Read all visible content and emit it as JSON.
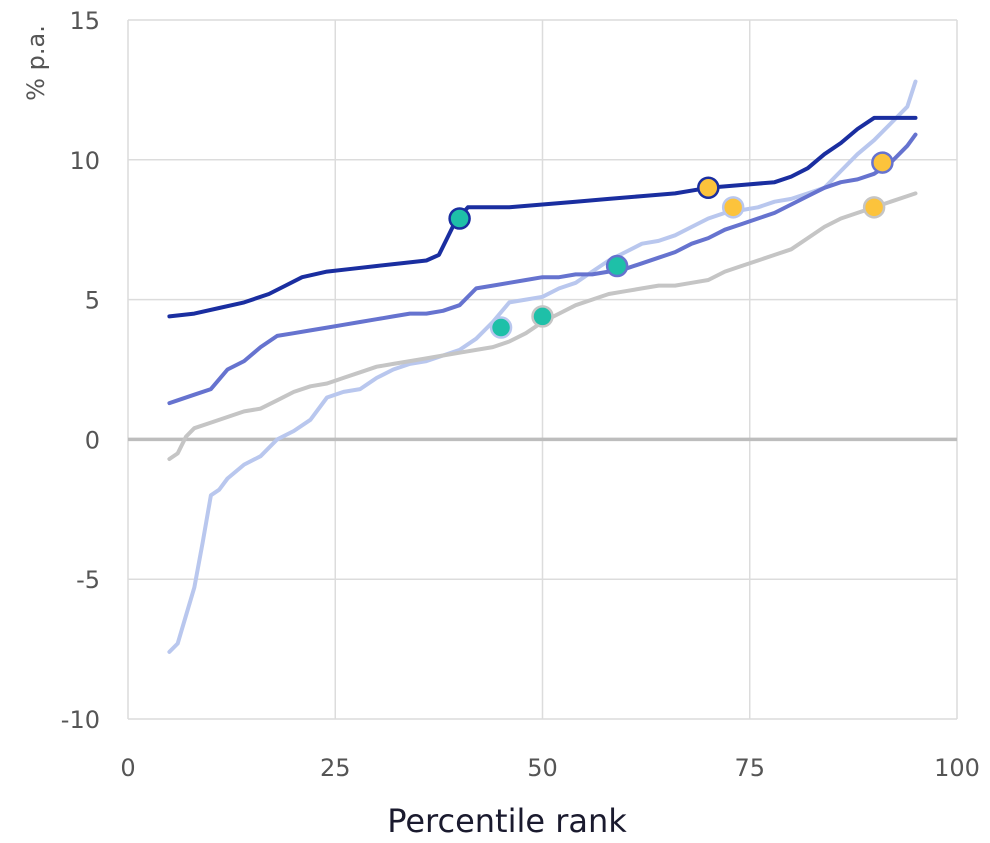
{
  "chart_data": {
    "type": "line",
    "title": "",
    "xlabel": "Percentile rank",
    "ylabel": "% p.a.",
    "xlim": [
      0,
      100
    ],
    "ylim": [
      -10,
      15
    ],
    "x_ticks": [
      0,
      25,
      50,
      75,
      100
    ],
    "y_ticks": [
      -10,
      -5,
      0,
      5,
      10,
      15
    ],
    "grid": true,
    "legend": "none",
    "zero_line_color": "#bdbdbd",
    "series": [
      {
        "color": "#b9c7ee",
        "x": [
          5,
          6,
          7,
          8,
          9,
          10,
          11,
          12,
          14,
          16,
          18,
          20,
          22,
          24,
          26,
          28,
          30,
          32,
          34,
          36,
          38,
          40,
          42,
          44,
          46,
          48,
          50,
          52,
          54,
          56,
          58,
          60,
          62,
          64,
          66,
          68,
          70,
          72,
          74,
          76,
          78,
          80,
          82,
          84,
          86,
          88,
          90,
          92,
          94,
          95
        ],
        "y": [
          -7.6,
          -7.3,
          -6.3,
          -5.3,
          -3.7,
          -2.0,
          -1.8,
          -1.4,
          -0.9,
          -0.6,
          0.0,
          0.3,
          0.7,
          1.5,
          1.7,
          1.8,
          2.2,
          2.5,
          2.7,
          2.8,
          3.0,
          3.2,
          3.6,
          4.2,
          4.9,
          5.0,
          5.1,
          5.4,
          5.6,
          6.0,
          6.4,
          6.7,
          7.0,
          7.1,
          7.3,
          7.6,
          7.9,
          8.1,
          8.2,
          8.3,
          8.5,
          8.6,
          8.8,
          9.0,
          9.6,
          10.2,
          10.7,
          11.3,
          11.9,
          12.8
        ]
      },
      {
        "color": "#c5c5c5",
        "x": [
          5,
          6,
          7,
          8,
          10,
          12,
          14,
          16,
          18,
          20,
          22,
          24,
          26,
          28,
          30,
          32,
          34,
          36,
          38,
          40,
          42,
          44,
          46,
          48,
          50,
          52,
          54,
          56,
          58,
          60,
          62,
          64,
          66,
          68,
          70,
          72,
          74,
          76,
          78,
          80,
          82,
          84,
          86,
          88,
          90,
          92,
          94,
          95
        ],
        "y": [
          -0.7,
          -0.5,
          0.1,
          0.4,
          0.6,
          0.8,
          1.0,
          1.1,
          1.4,
          1.7,
          1.9,
          2.0,
          2.2,
          2.4,
          2.6,
          2.7,
          2.8,
          2.9,
          3.0,
          3.1,
          3.2,
          3.3,
          3.5,
          3.8,
          4.2,
          4.5,
          4.8,
          5.0,
          5.2,
          5.3,
          5.4,
          5.5,
          5.5,
          5.6,
          5.7,
          6.0,
          6.2,
          6.4,
          6.6,
          6.8,
          7.2,
          7.6,
          7.9,
          8.1,
          8.3,
          8.5,
          8.7,
          8.8
        ]
      },
      {
        "color": "#6673cf",
        "x": [
          5,
          6,
          8,
          10,
          12,
          14,
          16,
          18,
          20,
          22,
          24,
          26,
          28,
          30,
          32,
          34,
          36,
          38,
          40,
          42,
          44,
          46,
          48,
          50,
          52,
          54,
          56,
          58,
          60,
          62,
          64,
          66,
          68,
          70,
          72,
          74,
          76,
          78,
          80,
          82,
          84,
          86,
          88,
          90,
          92,
          94,
          95
        ],
        "y": [
          1.3,
          1.4,
          1.6,
          1.8,
          2.5,
          2.8,
          3.3,
          3.7,
          3.8,
          3.9,
          4.0,
          4.1,
          4.2,
          4.3,
          4.4,
          4.5,
          4.5,
          4.6,
          4.8,
          5.4,
          5.5,
          5.6,
          5.7,
          5.8,
          5.8,
          5.9,
          5.9,
          6.0,
          6.1,
          6.3,
          6.5,
          6.7,
          7.0,
          7.2,
          7.5,
          7.7,
          7.9,
          8.1,
          8.4,
          8.7,
          9.0,
          9.2,
          9.3,
          9.5,
          9.9,
          10.5,
          10.9
        ]
      },
      {
        "color": "#1a2ea0",
        "x": [
          5,
          8,
          11,
          14,
          17,
          19,
          21,
          24,
          27,
          30,
          33,
          36,
          37.5,
          38.5,
          39.5,
          41,
          43,
          46,
          50,
          54,
          58,
          62,
          66,
          70,
          74,
          78,
          80,
          82,
          84,
          86,
          88,
          90,
          92,
          95
        ],
        "y": [
          4.4,
          4.5,
          4.7,
          4.9,
          5.2,
          5.5,
          5.8,
          6.0,
          6.1,
          6.2,
          6.3,
          6.4,
          6.6,
          7.2,
          7.8,
          8.3,
          8.3,
          8.3,
          8.4,
          8.5,
          8.6,
          8.7,
          8.8,
          9.0,
          9.1,
          9.2,
          9.4,
          9.7,
          10.2,
          10.6,
          11.1,
          11.5,
          11.5,
          11.5
        ]
      }
    ],
    "markers": [
      {
        "x": 40,
        "y": 7.9,
        "fill": "#1ec0a8",
        "stroke": "#1a2ea0"
      },
      {
        "x": 59,
        "y": 6.2,
        "fill": "#1ec0a8",
        "stroke": "#6673cf"
      },
      {
        "x": 45,
        "y": 4.0,
        "fill": "#1ec0a8",
        "stroke": "#b9c7ee"
      },
      {
        "x": 50,
        "y": 4.4,
        "fill": "#1ec0a8",
        "stroke": "#c5c5c5"
      },
      {
        "x": 70,
        "y": 9.0,
        "fill": "#fcc33c",
        "stroke": "#1a2ea0"
      },
      {
        "x": 91,
        "y": 9.9,
        "fill": "#fcc33c",
        "stroke": "#6673cf"
      },
      {
        "x": 73,
        "y": 8.3,
        "fill": "#fcc33c",
        "stroke": "#b9c7ee"
      },
      {
        "x": 90,
        "y": 8.3,
        "fill": "#fcc33c",
        "stroke": "#c5c5c5"
      }
    ]
  }
}
